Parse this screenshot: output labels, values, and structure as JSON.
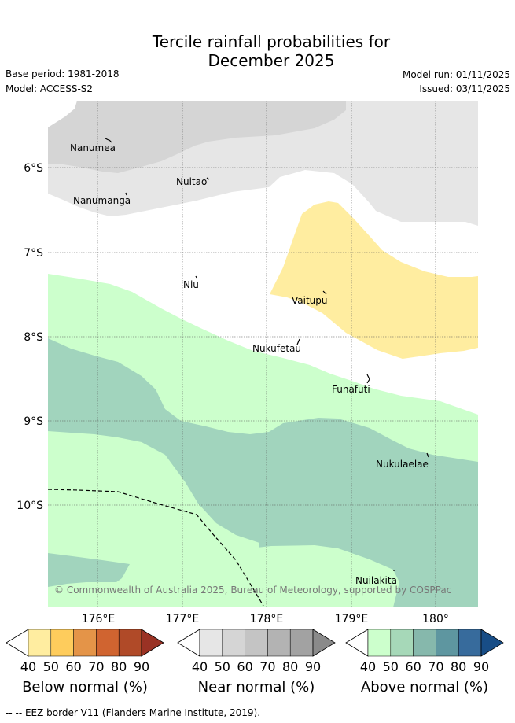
{
  "title": {
    "line1": "Tercile rainfall probabilities for",
    "line2": "December 2025"
  },
  "meta": {
    "base_period": "Base period: 1981-2018",
    "model": "Model: ACCESS-S2",
    "model_run": "Model run: 01/11/2025",
    "issued": "Issued: 03/11/2025"
  },
  "map": {
    "lat_labels": [
      "6°S",
      "7°S",
      "8°S",
      "9°S",
      "10°S"
    ],
    "lon_labels": [
      "176°E",
      "177°E",
      "178°E",
      "179°E",
      "180°"
    ],
    "islands": [
      "Nanumea",
      "Nuitao",
      "Nanumanga",
      "Niu",
      "Vaitupu",
      "Nukufetau",
      "Funafuti",
      "Nukulaelae",
      "Nuilakita"
    ],
    "copyright": "© Commonwealth of Australia 2025, Bureau of Meteorology, supported by COSPPac",
    "colors": {
      "near_normal_light": "#e6e6e6",
      "near_normal_mid": "#d5d5d5",
      "below_normal_light": "#ffeda0",
      "above_normal_light": "#ccffcc",
      "above_normal_mid": "#a1d4bd"
    }
  },
  "colorbars": [
    {
      "title": "Below normal (%)",
      "ticks": [
        "40",
        "50",
        "60",
        "70",
        "80",
        "90"
      ],
      "colors": [
        "#ffeda0",
        "#fecc5c",
        "#e49448",
        "#d06430",
        "#b04a28",
        "#9a3224"
      ]
    },
    {
      "title": "Near normal (%)",
      "ticks": [
        "40",
        "50",
        "60",
        "70",
        "80",
        "90"
      ],
      "colors": [
        "#e6e6e6",
        "#d5d5d5",
        "#c4c4c4",
        "#b3b3b3",
        "#a2a2a2",
        "#8a8a8a"
      ]
    },
    {
      "title": "Above normal (%)",
      "ticks": [
        "40",
        "50",
        "60",
        "70",
        "80",
        "90"
      ],
      "colors": [
        "#ccffcc",
        "#a6d8b8",
        "#86b8ac",
        "#5e96a0",
        "#376b9c",
        "#184d86"
      ]
    }
  ],
  "footer": {
    "border_note": "-- EEZ border V11 (Flanders Marine Institute, 2019)."
  }
}
